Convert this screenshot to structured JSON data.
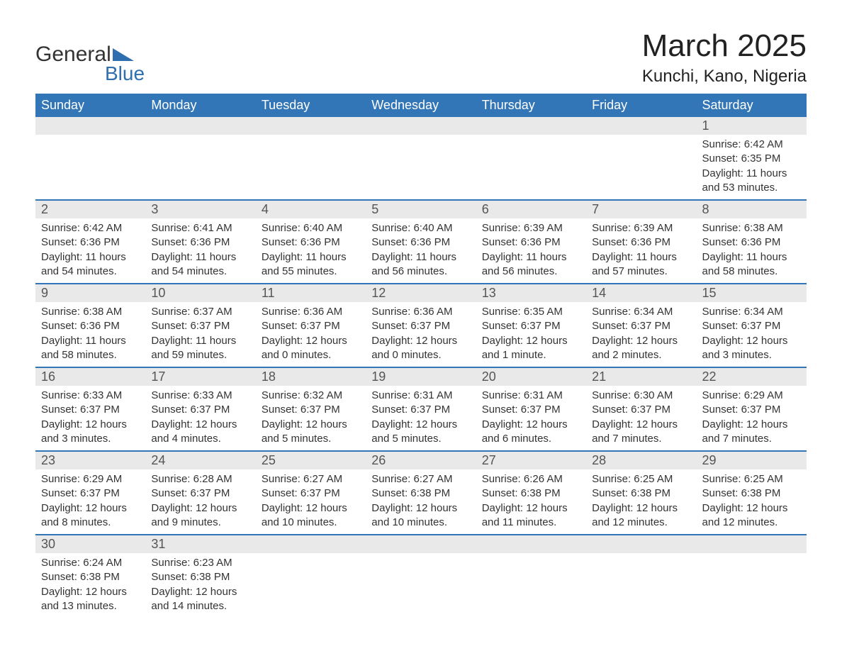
{
  "logo": {
    "text_general": "General",
    "text_blue": "Blue",
    "icon_color": "#2f6fb0"
  },
  "header": {
    "month_title": "March 2025",
    "location": "Kunchi, Kano, Nigeria"
  },
  "colors": {
    "header_bg": "#3376b8",
    "header_text": "#ffffff",
    "number_bg": "#e9e9e9",
    "text": "#333333",
    "border": "#3376b8"
  },
  "day_names": [
    "Sunday",
    "Monday",
    "Tuesday",
    "Wednesday",
    "Thursday",
    "Friday",
    "Saturday"
  ],
  "weeks": [
    {
      "days": [
        {
          "num": "",
          "sunrise": "",
          "sunset": "",
          "daylight1": "",
          "daylight2": ""
        },
        {
          "num": "",
          "sunrise": "",
          "sunset": "",
          "daylight1": "",
          "daylight2": ""
        },
        {
          "num": "",
          "sunrise": "",
          "sunset": "",
          "daylight1": "",
          "daylight2": ""
        },
        {
          "num": "",
          "sunrise": "",
          "sunset": "",
          "daylight1": "",
          "daylight2": ""
        },
        {
          "num": "",
          "sunrise": "",
          "sunset": "",
          "daylight1": "",
          "daylight2": ""
        },
        {
          "num": "",
          "sunrise": "",
          "sunset": "",
          "daylight1": "",
          "daylight2": ""
        },
        {
          "num": "1",
          "sunrise": "Sunrise: 6:42 AM",
          "sunset": "Sunset: 6:35 PM",
          "daylight1": "Daylight: 11 hours",
          "daylight2": "and 53 minutes."
        }
      ]
    },
    {
      "days": [
        {
          "num": "2",
          "sunrise": "Sunrise: 6:42 AM",
          "sunset": "Sunset: 6:36 PM",
          "daylight1": "Daylight: 11 hours",
          "daylight2": "and 54 minutes."
        },
        {
          "num": "3",
          "sunrise": "Sunrise: 6:41 AM",
          "sunset": "Sunset: 6:36 PM",
          "daylight1": "Daylight: 11 hours",
          "daylight2": "and 54 minutes."
        },
        {
          "num": "4",
          "sunrise": "Sunrise: 6:40 AM",
          "sunset": "Sunset: 6:36 PM",
          "daylight1": "Daylight: 11 hours",
          "daylight2": "and 55 minutes."
        },
        {
          "num": "5",
          "sunrise": "Sunrise: 6:40 AM",
          "sunset": "Sunset: 6:36 PM",
          "daylight1": "Daylight: 11 hours",
          "daylight2": "and 56 minutes."
        },
        {
          "num": "6",
          "sunrise": "Sunrise: 6:39 AM",
          "sunset": "Sunset: 6:36 PM",
          "daylight1": "Daylight: 11 hours",
          "daylight2": "and 56 minutes."
        },
        {
          "num": "7",
          "sunrise": "Sunrise: 6:39 AM",
          "sunset": "Sunset: 6:36 PM",
          "daylight1": "Daylight: 11 hours",
          "daylight2": "and 57 minutes."
        },
        {
          "num": "8",
          "sunrise": "Sunrise: 6:38 AM",
          "sunset": "Sunset: 6:36 PM",
          "daylight1": "Daylight: 11 hours",
          "daylight2": "and 58 minutes."
        }
      ]
    },
    {
      "days": [
        {
          "num": "9",
          "sunrise": "Sunrise: 6:38 AM",
          "sunset": "Sunset: 6:36 PM",
          "daylight1": "Daylight: 11 hours",
          "daylight2": "and 58 minutes."
        },
        {
          "num": "10",
          "sunrise": "Sunrise: 6:37 AM",
          "sunset": "Sunset: 6:37 PM",
          "daylight1": "Daylight: 11 hours",
          "daylight2": "and 59 minutes."
        },
        {
          "num": "11",
          "sunrise": "Sunrise: 6:36 AM",
          "sunset": "Sunset: 6:37 PM",
          "daylight1": "Daylight: 12 hours",
          "daylight2": "and 0 minutes."
        },
        {
          "num": "12",
          "sunrise": "Sunrise: 6:36 AM",
          "sunset": "Sunset: 6:37 PM",
          "daylight1": "Daylight: 12 hours",
          "daylight2": "and 0 minutes."
        },
        {
          "num": "13",
          "sunrise": "Sunrise: 6:35 AM",
          "sunset": "Sunset: 6:37 PM",
          "daylight1": "Daylight: 12 hours",
          "daylight2": "and 1 minute."
        },
        {
          "num": "14",
          "sunrise": "Sunrise: 6:34 AM",
          "sunset": "Sunset: 6:37 PM",
          "daylight1": "Daylight: 12 hours",
          "daylight2": "and 2 minutes."
        },
        {
          "num": "15",
          "sunrise": "Sunrise: 6:34 AM",
          "sunset": "Sunset: 6:37 PM",
          "daylight1": "Daylight: 12 hours",
          "daylight2": "and 3 minutes."
        }
      ]
    },
    {
      "days": [
        {
          "num": "16",
          "sunrise": "Sunrise: 6:33 AM",
          "sunset": "Sunset: 6:37 PM",
          "daylight1": "Daylight: 12 hours",
          "daylight2": "and 3 minutes."
        },
        {
          "num": "17",
          "sunrise": "Sunrise: 6:33 AM",
          "sunset": "Sunset: 6:37 PM",
          "daylight1": "Daylight: 12 hours",
          "daylight2": "and 4 minutes."
        },
        {
          "num": "18",
          "sunrise": "Sunrise: 6:32 AM",
          "sunset": "Sunset: 6:37 PM",
          "daylight1": "Daylight: 12 hours",
          "daylight2": "and 5 minutes."
        },
        {
          "num": "19",
          "sunrise": "Sunrise: 6:31 AM",
          "sunset": "Sunset: 6:37 PM",
          "daylight1": "Daylight: 12 hours",
          "daylight2": "and 5 minutes."
        },
        {
          "num": "20",
          "sunrise": "Sunrise: 6:31 AM",
          "sunset": "Sunset: 6:37 PM",
          "daylight1": "Daylight: 12 hours",
          "daylight2": "and 6 minutes."
        },
        {
          "num": "21",
          "sunrise": "Sunrise: 6:30 AM",
          "sunset": "Sunset: 6:37 PM",
          "daylight1": "Daylight: 12 hours",
          "daylight2": "and 7 minutes."
        },
        {
          "num": "22",
          "sunrise": "Sunrise: 6:29 AM",
          "sunset": "Sunset: 6:37 PM",
          "daylight1": "Daylight: 12 hours",
          "daylight2": "and 7 minutes."
        }
      ]
    },
    {
      "days": [
        {
          "num": "23",
          "sunrise": "Sunrise: 6:29 AM",
          "sunset": "Sunset: 6:37 PM",
          "daylight1": "Daylight: 12 hours",
          "daylight2": "and 8 minutes."
        },
        {
          "num": "24",
          "sunrise": "Sunrise: 6:28 AM",
          "sunset": "Sunset: 6:37 PM",
          "daylight1": "Daylight: 12 hours",
          "daylight2": "and 9 minutes."
        },
        {
          "num": "25",
          "sunrise": "Sunrise: 6:27 AM",
          "sunset": "Sunset: 6:37 PM",
          "daylight1": "Daylight: 12 hours",
          "daylight2": "and 10 minutes."
        },
        {
          "num": "26",
          "sunrise": "Sunrise: 6:27 AM",
          "sunset": "Sunset: 6:38 PM",
          "daylight1": "Daylight: 12 hours",
          "daylight2": "and 10 minutes."
        },
        {
          "num": "27",
          "sunrise": "Sunrise: 6:26 AM",
          "sunset": "Sunset: 6:38 PM",
          "daylight1": "Daylight: 12 hours",
          "daylight2": "and 11 minutes."
        },
        {
          "num": "28",
          "sunrise": "Sunrise: 6:25 AM",
          "sunset": "Sunset: 6:38 PM",
          "daylight1": "Daylight: 12 hours",
          "daylight2": "and 12 minutes."
        },
        {
          "num": "29",
          "sunrise": "Sunrise: 6:25 AM",
          "sunset": "Sunset: 6:38 PM",
          "daylight1": "Daylight: 12 hours",
          "daylight2": "and 12 minutes."
        }
      ]
    },
    {
      "days": [
        {
          "num": "30",
          "sunrise": "Sunrise: 6:24 AM",
          "sunset": "Sunset: 6:38 PM",
          "daylight1": "Daylight: 12 hours",
          "daylight2": "and 13 minutes."
        },
        {
          "num": "31",
          "sunrise": "Sunrise: 6:23 AM",
          "sunset": "Sunset: 6:38 PM",
          "daylight1": "Daylight: 12 hours",
          "daylight2": "and 14 minutes."
        },
        {
          "num": "",
          "sunrise": "",
          "sunset": "",
          "daylight1": "",
          "daylight2": ""
        },
        {
          "num": "",
          "sunrise": "",
          "sunset": "",
          "daylight1": "",
          "daylight2": ""
        },
        {
          "num": "",
          "sunrise": "",
          "sunset": "",
          "daylight1": "",
          "daylight2": ""
        },
        {
          "num": "",
          "sunrise": "",
          "sunset": "",
          "daylight1": "",
          "daylight2": ""
        },
        {
          "num": "",
          "sunrise": "",
          "sunset": "",
          "daylight1": "",
          "daylight2": ""
        }
      ]
    }
  ]
}
